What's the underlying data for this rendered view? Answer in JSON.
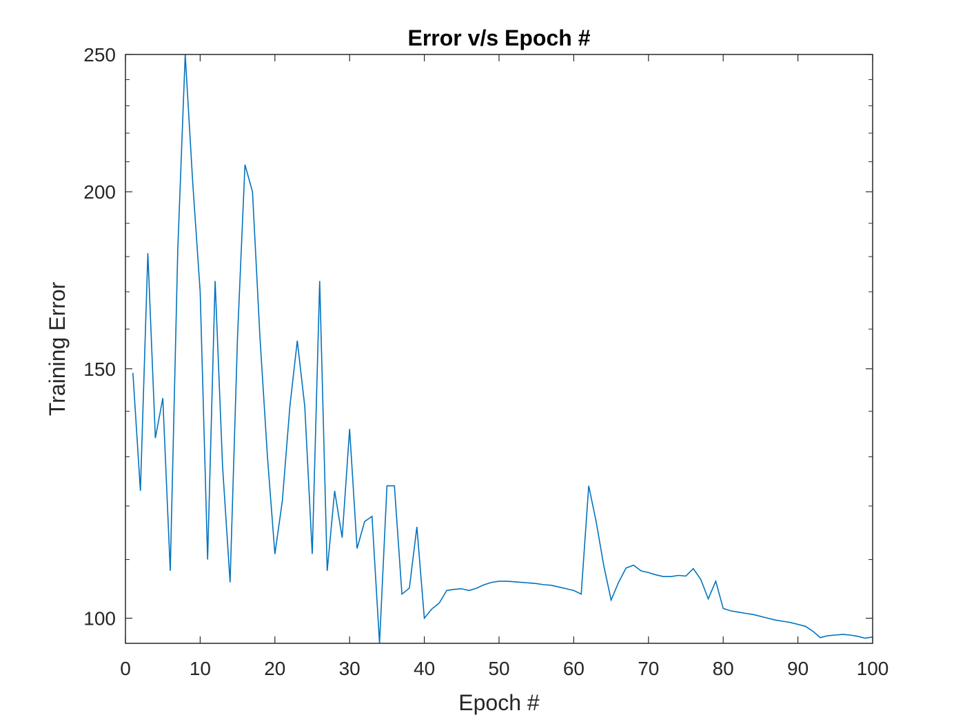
{
  "chart_data": {
    "type": "line",
    "title": "Error v/s Epoch #",
    "xlabel": "Epoch #",
    "ylabel": "Training Error",
    "xlim": [
      0,
      100
    ],
    "ylim": [
      96,
      250
    ],
    "y_scale": "log",
    "x_ticks": [
      0,
      10,
      20,
      30,
      40,
      50,
      60,
      70,
      80,
      90,
      100
    ],
    "y_ticks": [
      100,
      150,
      200,
      250
    ],
    "grid": false,
    "box": true,
    "series": [
      {
        "color": "#0072BD",
        "x": [
          1,
          2,
          3,
          4,
          5,
          6,
          7,
          8,
          9,
          10,
          11,
          12,
          13,
          14,
          15,
          16,
          17,
          18,
          19,
          20,
          21,
          22,
          23,
          24,
          25,
          26,
          27,
          28,
          29,
          30,
          31,
          32,
          33,
          34,
          35,
          36,
          37,
          38,
          39,
          40,
          41,
          42,
          43,
          44,
          45,
          46,
          47,
          48,
          49,
          50,
          51,
          52,
          53,
          54,
          55,
          56,
          57,
          58,
          59,
          60,
          61,
          62,
          63,
          64,
          65,
          66,
          67,
          68,
          69,
          70,
          71,
          72,
          73,
          74,
          75,
          76,
          77,
          78,
          79,
          80,
          81,
          82,
          83,
          84,
          85,
          86,
          87,
          88,
          89,
          90,
          91,
          92,
          93,
          94,
          95,
          96,
          97,
          98,
          99,
          100
        ],
        "values": [
          149,
          123,
          181,
          134,
          143,
          108,
          182,
          250,
          203,
          170,
          110,
          173,
          128,
          106,
          158,
          209,
          200,
          158,
          130,
          111,
          121,
          141,
          157,
          141,
          111,
          173,
          108,
          123,
          114,
          136,
          112,
          117,
          118,
          96,
          124,
          124,
          104,
          105,
          116,
          100,
          101.5,
          102.5,
          104.6,
          104.8,
          104.9,
          104.6,
          105,
          105.6,
          106,
          106.2,
          106.2,
          106.1,
          106,
          105.9,
          105.8,
          105.6,
          105.5,
          105.2,
          104.9,
          104.6,
          104,
          124,
          117,
          109,
          103,
          106,
          108.5,
          109,
          108,
          107.7,
          107.3,
          107,
          107,
          107.2,
          107.1,
          108.4,
          106.5,
          103.2,
          106.2,
          101.6,
          101.2,
          101,
          100.8,
          100.6,
          100.3,
          100,
          99.7,
          99.5,
          99.3,
          99,
          98.7,
          97.9,
          96.9,
          97.2,
          97.3,
          97.4,
          97.3,
          97.1,
          96.8,
          97
        ]
      }
    ]
  }
}
